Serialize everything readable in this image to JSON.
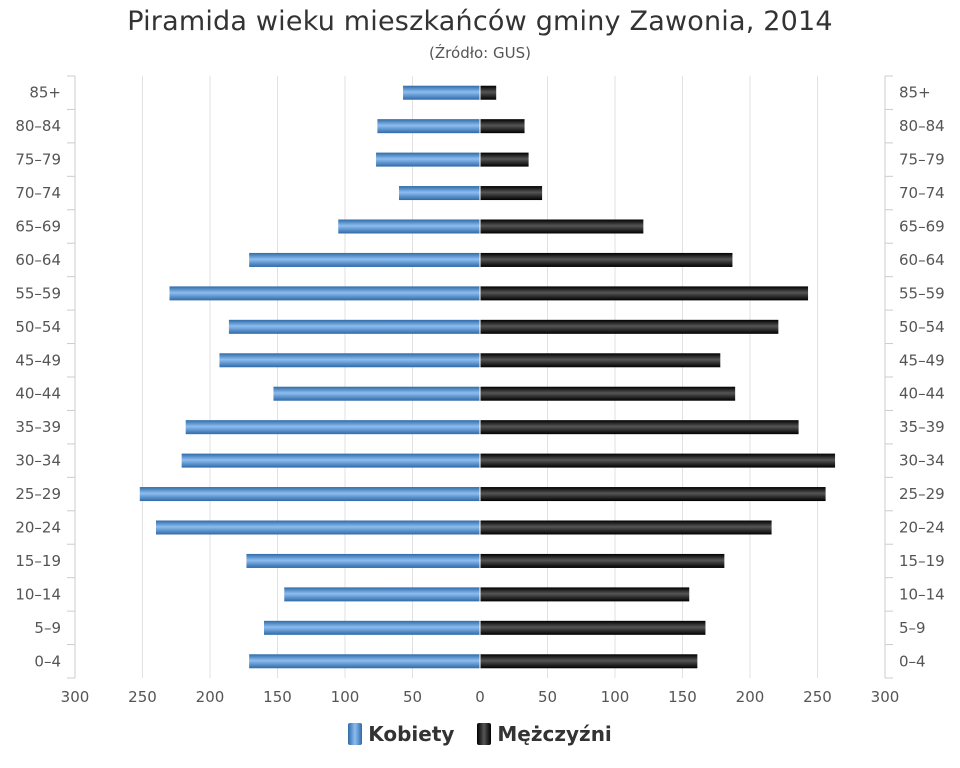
{
  "chart_data": {
    "type": "bar",
    "title": "Piramida wieku mieszkańców gminy Zawonia, 2014",
    "subtitle": "(Źródło: GUS)",
    "categories": [
      "85+",
      "80–84",
      "75–79",
      "70–74",
      "65–69",
      "60–64",
      "55–59",
      "50–54",
      "45–49",
      "40–44",
      "35–39",
      "30–34",
      "25–29",
      "20–24",
      "15–19",
      "10–14",
      "5–9",
      "0–4"
    ],
    "series": [
      {
        "name": "Kobiety",
        "color": "#4a86c8",
        "values": [
          57,
          76,
          77,
          60,
          105,
          171,
          230,
          186,
          193,
          153,
          218,
          221,
          252,
          240,
          173,
          145,
          160,
          171
        ]
      },
      {
        "name": "Mężczyźni",
        "color": "#1a1a1a",
        "values": [
          12,
          33,
          36,
          46,
          121,
          187,
          243,
          221,
          178,
          189,
          236,
          263,
          256,
          216,
          181,
          155,
          167,
          161
        ]
      }
    ],
    "xlim": [
      -300,
      300
    ],
    "xticks": [
      "300",
      "250",
      "200",
      "150",
      "100",
      "50",
      "0",
      "50",
      "100",
      "150",
      "200",
      "250",
      "300"
    ],
    "grid": true,
    "legend_position": "bottom"
  }
}
